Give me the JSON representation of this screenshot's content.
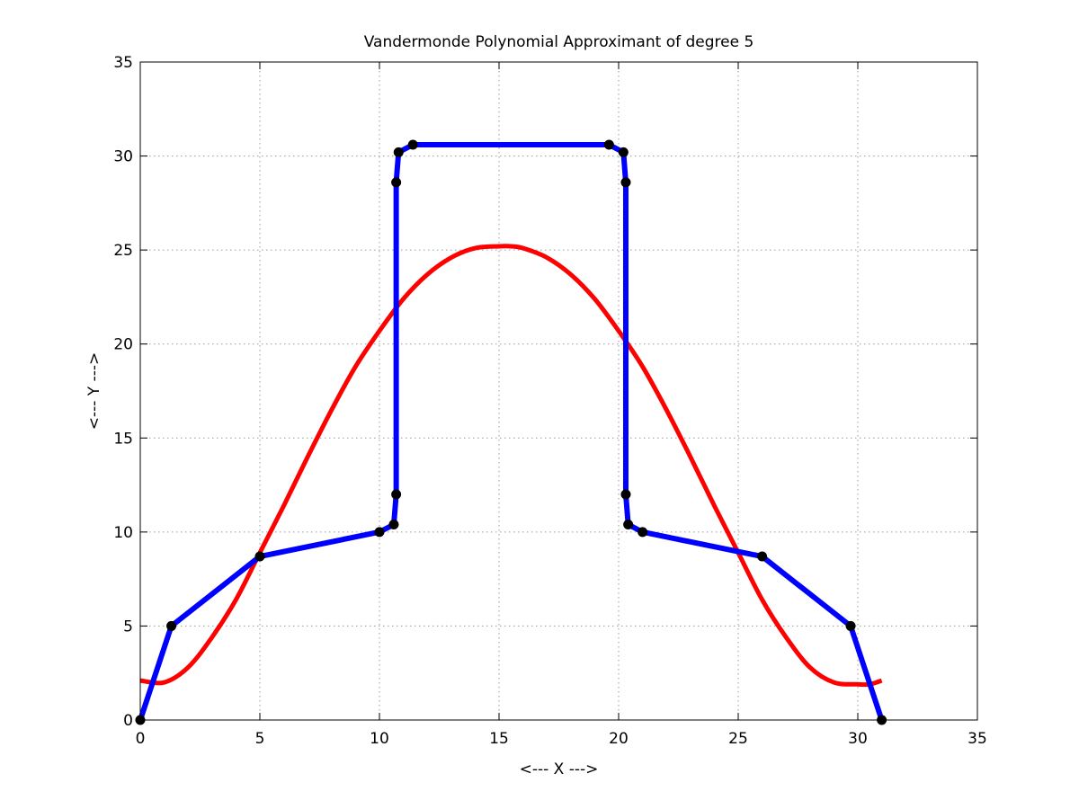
{
  "chart_data": {
    "type": "line",
    "title": "Vandermonde Polynomial Approximant of degree 5",
    "xlabel": "<--- X --->",
    "ylabel": "<--- Y --->",
    "xlim": [
      0,
      35
    ],
    "ylim": [
      0,
      35
    ],
    "xticks": [
      0,
      5,
      10,
      15,
      20,
      25,
      30,
      35
    ],
    "yticks": [
      0,
      5,
      10,
      15,
      20,
      25,
      30,
      35
    ],
    "grid": true,
    "series": [
      {
        "kind": "data-points",
        "color": "#0000ff",
        "marker_color": "#000000",
        "x": [
          0,
          1.3,
          5,
          10,
          10.6,
          10.7,
          10.7,
          10.8,
          11.4,
          19.6,
          20.2,
          20.3,
          20.3,
          20.4,
          21,
          26,
          29.7,
          31
        ],
        "y": [
          0,
          5,
          8.7,
          10,
          10.4,
          12,
          28.6,
          30.2,
          30.6,
          30.6,
          30.2,
          28.6,
          12,
          10.4,
          10,
          8.7,
          5,
          0
        ]
      },
      {
        "kind": "polynomial-fit",
        "color": "#ff0000",
        "x": [
          0,
          1,
          2,
          3,
          4,
          5,
          6,
          7,
          8,
          9,
          10,
          11,
          12,
          13,
          14,
          15,
          15.5,
          16,
          17,
          18,
          19,
          20,
          21,
          22,
          23,
          24,
          25,
          26,
          27,
          28,
          29,
          30,
          30.5,
          31
        ],
        "y": [
          2.1,
          2.0,
          2.8,
          4.4,
          6.4,
          8.9,
          11.4,
          14.0,
          16.5,
          18.8,
          20.7,
          22.4,
          23.7,
          24.6,
          25.1,
          25.2,
          25.2,
          25.1,
          24.6,
          23.7,
          22.4,
          20.7,
          18.8,
          16.5,
          14.0,
          11.4,
          8.9,
          6.4,
          4.4,
          2.8,
          2.0,
          1.9,
          1.9,
          2.1
        ]
      }
    ]
  }
}
